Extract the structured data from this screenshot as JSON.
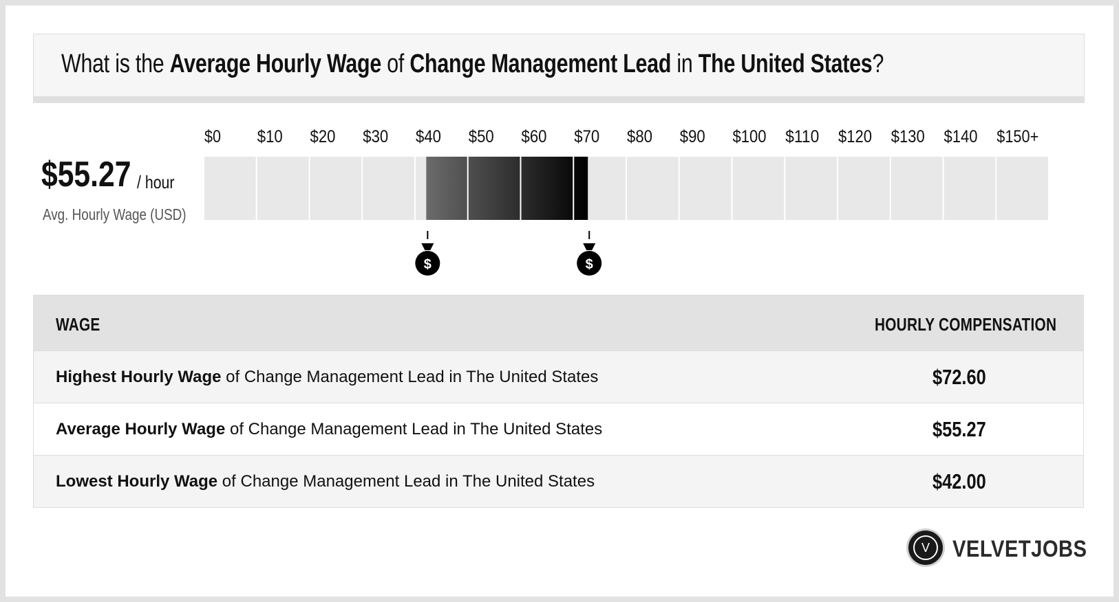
{
  "question": {
    "prefix": "What is the ",
    "metric": "Average Hourly Wage",
    "of": " of ",
    "job": "Change Management Lead",
    "in": " in ",
    "location": "The United States",
    "suffix": "?"
  },
  "summary": {
    "value": "$55.27",
    "unit": "/ hour",
    "label": "Avg. Hourly Wage (USD)"
  },
  "chart_data": {
    "type": "bar",
    "orientation": "horizontal-range",
    "x_tick_labels": [
      "$0",
      "$10",
      "$20",
      "$30",
      "$40",
      "$50",
      "$60",
      "$70",
      "$80",
      "$90",
      "$100",
      "$110",
      "$120",
      "$130",
      "$140",
      "$150+"
    ],
    "xlim": [
      0,
      150
    ],
    "range_low": 42.0,
    "range_high": 72.6,
    "marker_icon": "money-bag-icon",
    "colors": {
      "track": "#e8e8e8",
      "range_start": "#6b6b6b",
      "range_end": "#000000"
    }
  },
  "table": {
    "header_wage": "WAGE",
    "header_comp": "HOURLY COMPENSATION",
    "rows": [
      {
        "bold": "Highest Hourly Wage",
        "rest": " of Change Management Lead in The United States",
        "value": "$72.60"
      },
      {
        "bold": "Average Hourly Wage",
        "rest": " of Change Management Lead in The United States",
        "value": "$55.27"
      },
      {
        "bold": "Lowest Hourly Wage",
        "rest": " of Change Management Lead in The United States",
        "value": "$42.00"
      }
    ]
  },
  "logo": {
    "mark": "V",
    "text": "VELVETJOBS"
  }
}
